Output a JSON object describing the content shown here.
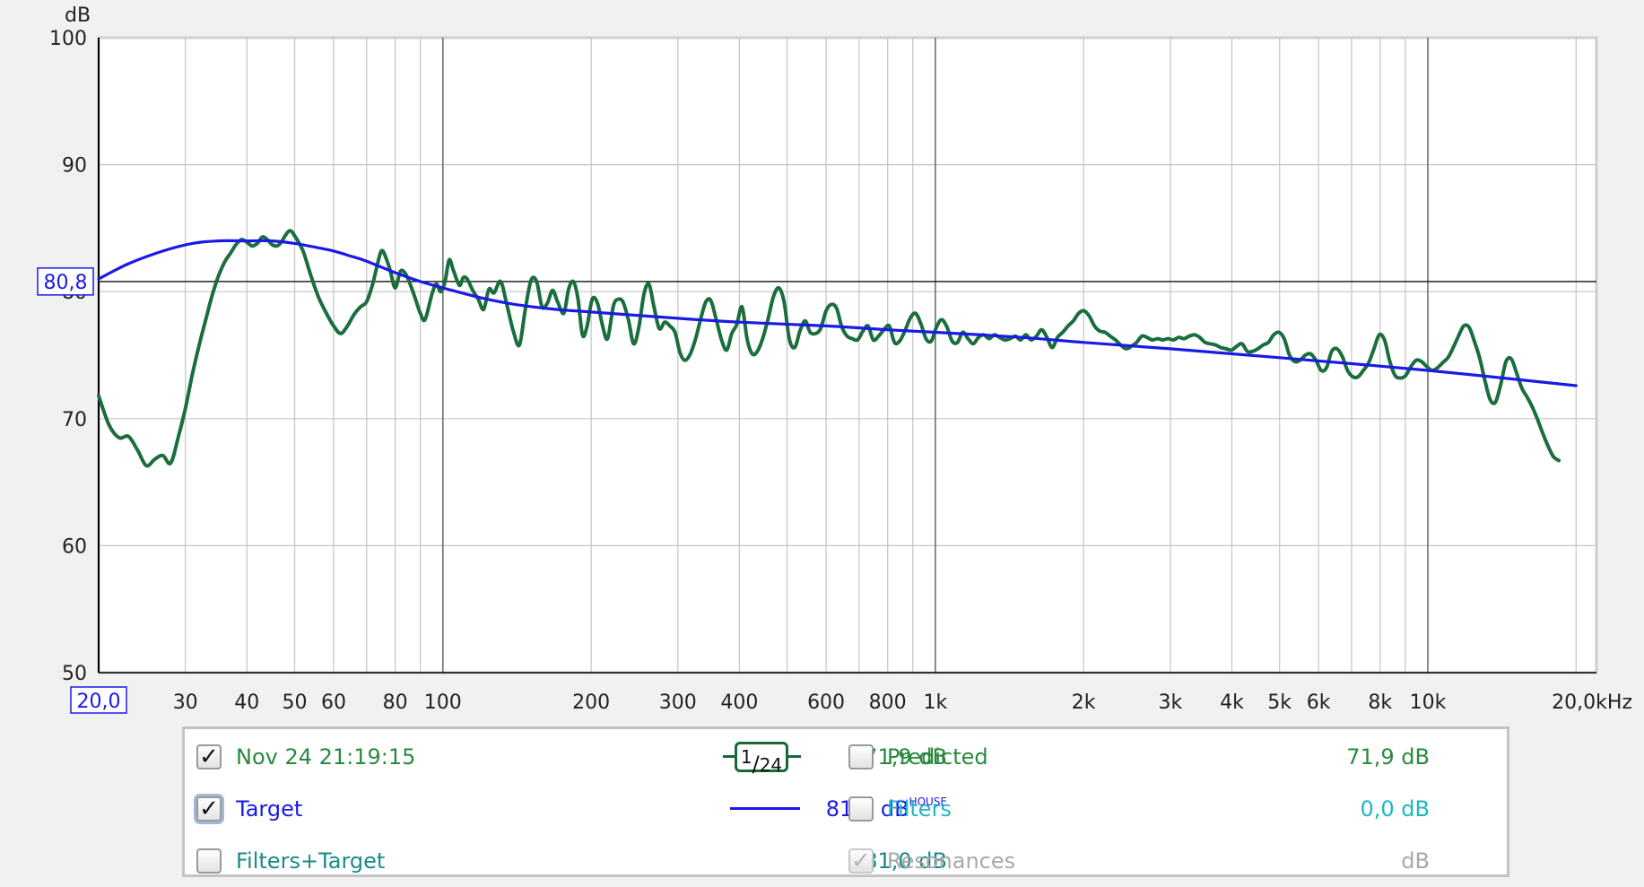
{
  "chart_data": {
    "type": "line",
    "ylabel": "dB",
    "xlabel": "",
    "xscale": "log",
    "xlim": [
      20,
      22000
    ],
    "ylim": [
      50,
      100
    ],
    "grid": true,
    "y_ticks": [
      "100",
      "90",
      "80",
      "70",
      "60",
      "50"
    ],
    "x_ticks": [
      "30",
      "40",
      "50",
      "60",
      "80",
      "100",
      "200",
      "300",
      "400",
      "600",
      "800",
      "1k",
      "2k",
      "3k",
      "4k",
      "5k",
      "6k",
      "8k",
      "10k"
    ],
    "x_start_label": "20,0",
    "x_end_label": "20,0kHz",
    "reference_level_label": "80,8",
    "reference_level": 80.8,
    "series": [
      {
        "name": "Nov 24 21:19:15",
        "color": "#1a6e3c",
        "points": [
          [
            20,
            71.8
          ],
          [
            21,
            69.5
          ],
          [
            22,
            68.5
          ],
          [
            23,
            68.6
          ],
          [
            24,
            67.5
          ],
          [
            25,
            66.3
          ],
          [
            26,
            66.8
          ],
          [
            27,
            67.1
          ],
          [
            28,
            66.5
          ],
          [
            29,
            68.5
          ],
          [
            30,
            70.8
          ],
          [
            31,
            73.5
          ],
          [
            32,
            75.8
          ],
          [
            33,
            77.8
          ],
          [
            34,
            79.7
          ],
          [
            35,
            81.2
          ],
          [
            36,
            82.3
          ],
          [
            37,
            83.0
          ],
          [
            38,
            83.7
          ],
          [
            39,
            84.1
          ],
          [
            40,
            83.9
          ],
          [
            41,
            83.6
          ],
          [
            42,
            83.8
          ],
          [
            43,
            84.3
          ],
          [
            44,
            84.1
          ],
          [
            45,
            83.7
          ],
          [
            46,
            83.6
          ],
          [
            47,
            83.9
          ],
          [
            48,
            84.5
          ],
          [
            49,
            84.8
          ],
          [
            50,
            84.4
          ],
          [
            52,
            83.2
          ],
          [
            54,
            81.2
          ],
          [
            56,
            79.5
          ],
          [
            58,
            78.3
          ],
          [
            60,
            77.3
          ],
          [
            62,
            76.7
          ],
          [
            64,
            77.3
          ],
          [
            66,
            78.2
          ],
          [
            68,
            78.8
          ],
          [
            70,
            79.2
          ],
          [
            72,
            80.6
          ],
          [
            74,
            82.5
          ],
          [
            75,
            83.2
          ],
          [
            76,
            83.0
          ],
          [
            78,
            81.8
          ],
          [
            80,
            80.3
          ],
          [
            82,
            81.6
          ],
          [
            84,
            81.4
          ],
          [
            86,
            80.5
          ],
          [
            88,
            79.4
          ],
          [
            90,
            78.3
          ],
          [
            92,
            77.8
          ],
          [
            95,
            79.8
          ],
          [
            97,
            80.6
          ],
          [
            99,
            80.0
          ],
          [
            101,
            80.8
          ],
          [
            103,
            82.5
          ],
          [
            105,
            81.7
          ],
          [
            108,
            80.5
          ],
          [
            110,
            81.1
          ],
          [
            112,
            81.0
          ],
          [
            115,
            80.1
          ],
          [
            118,
            79.4
          ],
          [
            121,
            78.6
          ],
          [
            124,
            80.2
          ],
          [
            127,
            79.9
          ],
          [
            131,
            80.8
          ],
          [
            135,
            78.9
          ],
          [
            139,
            76.9
          ],
          [
            143,
            75.8
          ],
          [
            147,
            78.6
          ],
          [
            151,
            80.9
          ],
          [
            155,
            80.8
          ],
          [
            159,
            78.8
          ],
          [
            163,
            79.1
          ],
          [
            167,
            80.1
          ],
          [
            171,
            79.2
          ],
          [
            176,
            78.3
          ],
          [
            180,
            80.2
          ],
          [
            184,
            80.8
          ],
          [
            188,
            79.5
          ],
          [
            192,
            76.6
          ],
          [
            196,
            77.2
          ],
          [
            201,
            79.4
          ],
          [
            206,
            79.1
          ],
          [
            211,
            77.3
          ],
          [
            216,
            76.3
          ],
          [
            222,
            78.9
          ],
          [
            227,
            79.4
          ],
          [
            232,
            79.2
          ],
          [
            238,
            77.8
          ],
          [
            244,
            75.9
          ],
          [
            250,
            77.2
          ],
          [
            256,
            79.8
          ],
          [
            262,
            80.6
          ],
          [
            268,
            78.9
          ],
          [
            275,
            77.1
          ],
          [
            282,
            77.6
          ],
          [
            289,
            77.3
          ],
          [
            296,
            76.8
          ],
          [
            303,
            75.2
          ],
          [
            310,
            74.6
          ],
          [
            318,
            75.1
          ],
          [
            326,
            76.3
          ],
          [
            334,
            77.9
          ],
          [
            342,
            79.2
          ],
          [
            350,
            79.3
          ],
          [
            359,
            77.8
          ],
          [
            368,
            76.2
          ],
          [
            377,
            75.4
          ],
          [
            386,
            76.7
          ],
          [
            395,
            77.4
          ],
          [
            405,
            78.8
          ],
          [
            415,
            76.2
          ],
          [
            425,
            75.1
          ],
          [
            435,
            75.3
          ],
          [
            446,
            76.3
          ],
          [
            457,
            77.8
          ],
          [
            469,
            79.6
          ],
          [
            481,
            80.3
          ],
          [
            493,
            79.2
          ],
          [
            505,
            76.3
          ],
          [
            518,
            75.6
          ],
          [
            531,
            76.9
          ],
          [
            544,
            77.7
          ],
          [
            557,
            76.8
          ],
          [
            571,
            76.7
          ],
          [
            585,
            77.1
          ],
          [
            600,
            78.5
          ],
          [
            615,
            79.0
          ],
          [
            630,
            78.7
          ],
          [
            646,
            77.2
          ],
          [
            662,
            76.5
          ],
          [
            678,
            76.3
          ],
          [
            695,
            76.2
          ],
          [
            713,
            76.9
          ],
          [
            730,
            77.3
          ],
          [
            748,
            76.2
          ],
          [
            767,
            76.5
          ],
          [
            786,
            77.0
          ],
          [
            806,
            77.3
          ],
          [
            826,
            76.0
          ],
          [
            846,
            76.1
          ],
          [
            867,
            76.9
          ],
          [
            889,
            77.9
          ],
          [
            911,
            78.3
          ],
          [
            934,
            77.5
          ],
          [
            957,
            76.3
          ],
          [
            981,
            76.1
          ],
          [
            1005,
            77.2
          ],
          [
            1030,
            77.8
          ],
          [
            1056,
            77.2
          ],
          [
            1082,
            76.1
          ],
          [
            1109,
            76.0
          ],
          [
            1137,
            76.8
          ],
          [
            1165,
            76.3
          ],
          [
            1194,
            75.9
          ],
          [
            1224,
            76.4
          ],
          [
            1254,
            76.6
          ],
          [
            1286,
            76.3
          ],
          [
            1318,
            76.6
          ],
          [
            1350,
            76.4
          ],
          [
            1384,
            76.2
          ],
          [
            1419,
            76.3
          ],
          [
            1454,
            76.5
          ],
          [
            1490,
            76.2
          ],
          [
            1527,
            76.6
          ],
          [
            1565,
            76.2
          ],
          [
            1604,
            76.5
          ],
          [
            1644,
            77.0
          ],
          [
            1685,
            76.4
          ],
          [
            1727,
            75.6
          ],
          [
            1770,
            76.4
          ],
          [
            1814,
            76.8
          ],
          [
            1860,
            77.3
          ],
          [
            1906,
            77.7
          ],
          [
            1954,
            78.3
          ],
          [
            2002,
            78.5
          ],
          [
            2052,
            78.1
          ],
          [
            2104,
            77.3
          ],
          [
            2156,
            76.9
          ],
          [
            2210,
            76.8
          ],
          [
            2265,
            76.5
          ],
          [
            2321,
            76.2
          ],
          [
            2379,
            75.8
          ],
          [
            2439,
            75.5
          ],
          [
            2500,
            75.7
          ],
          [
            2562,
            76.0
          ],
          [
            2626,
            76.5
          ],
          [
            2691,
            76.4
          ],
          [
            2758,
            76.2
          ],
          [
            2827,
            76.3
          ],
          [
            2898,
            76.2
          ],
          [
            2970,
            76.3
          ],
          [
            3044,
            76.2
          ],
          [
            3120,
            76.4
          ],
          [
            3198,
            76.3
          ],
          [
            3278,
            76.5
          ],
          [
            3360,
            76.6
          ],
          [
            3443,
            76.4
          ],
          [
            3529,
            76.0
          ],
          [
            3617,
            75.9
          ],
          [
            3708,
            75.8
          ],
          [
            3800,
            75.6
          ],
          [
            3895,
            75.5
          ],
          [
            3992,
            75.4
          ],
          [
            4092,
            75.7
          ],
          [
            4194,
            75.9
          ],
          [
            4299,
            75.3
          ],
          [
            4406,
            75.3
          ],
          [
            4516,
            75.5
          ],
          [
            4629,
            75.8
          ],
          [
            4745,
            76.0
          ],
          [
            4863,
            76.6
          ],
          [
            4985,
            76.8
          ],
          [
            5109,
            76.3
          ],
          [
            5237,
            75.0
          ],
          [
            5368,
            74.5
          ],
          [
            5502,
            74.6
          ],
          [
            5639,
            75.0
          ],
          [
            5780,
            75.1
          ],
          [
            5925,
            74.6
          ],
          [
            6073,
            73.8
          ],
          [
            6225,
            74.0
          ],
          [
            6380,
            75.3
          ],
          [
            6540,
            75.5
          ],
          [
            6703,
            74.9
          ],
          [
            6871,
            73.8
          ],
          [
            7042,
            73.3
          ],
          [
            7218,
            73.3
          ],
          [
            7399,
            73.8
          ],
          [
            7584,
            74.4
          ],
          [
            7773,
            75.5
          ],
          [
            7968,
            76.6
          ],
          [
            8167,
            76.2
          ],
          [
            8371,
            74.5
          ],
          [
            8580,
            73.4
          ],
          [
            8795,
            73.2
          ],
          [
            9015,
            73.4
          ],
          [
            9240,
            74.1
          ],
          [
            9471,
            74.6
          ],
          [
            9708,
            74.5
          ],
          [
            9951,
            74.1
          ],
          [
            10200,
            73.8
          ],
          [
            10455,
            74.0
          ],
          [
            10716,
            74.4
          ],
          [
            10984,
            74.8
          ],
          [
            11259,
            75.6
          ],
          [
            11540,
            76.5
          ],
          [
            11829,
            77.3
          ],
          [
            12125,
            77.2
          ],
          [
            12428,
            76.1
          ],
          [
            12739,
            74.8
          ],
          [
            13057,
            73.0
          ],
          [
            13384,
            71.5
          ],
          [
            13718,
            71.3
          ],
          [
            14061,
            72.7
          ],
          [
            14413,
            74.5
          ],
          [
            14773,
            74.7
          ],
          [
            15142,
            73.6
          ],
          [
            15521,
            72.4
          ],
          [
            15909,
            71.7
          ],
          [
            16307,
            70.9
          ],
          [
            16715,
            69.9
          ],
          [
            17132,
            68.8
          ],
          [
            17561,
            67.8
          ],
          [
            18000,
            67.0
          ],
          [
            18450,
            66.7
          ]
        ]
      },
      {
        "name": "Target",
        "color": "#1a1ae8",
        "points": [
          [
            20,
            81.0
          ],
          [
            23,
            82.2
          ],
          [
            27,
            83.2
          ],
          [
            31,
            83.8
          ],
          [
            35,
            84.0
          ],
          [
            40,
            84.0
          ],
          [
            45,
            84.0
          ],
          [
            50,
            83.8
          ],
          [
            55,
            83.5
          ],
          [
            60,
            83.2
          ],
          [
            65,
            82.8
          ],
          [
            70,
            82.4
          ],
          [
            80,
            81.5
          ],
          [
            90,
            80.8
          ],
          [
            100,
            80.3
          ],
          [
            120,
            79.5
          ],
          [
            140,
            79.0
          ],
          [
            170,
            78.6
          ],
          [
            200,
            78.4
          ],
          [
            300,
            77.9
          ],
          [
            400,
            77.6
          ],
          [
            600,
            77.3
          ],
          [
            800,
            77.0
          ],
          [
            1000,
            76.8
          ],
          [
            1500,
            76.4
          ],
          [
            2000,
            76.0
          ],
          [
            3000,
            75.5
          ],
          [
            5000,
            74.8
          ],
          [
            10000,
            73.8
          ],
          [
            20000,
            72.6
          ]
        ]
      }
    ]
  },
  "legend": {
    "row1": {
      "label": "Nov 24 21:19:15",
      "checked": true,
      "smoothing_num": "1",
      "smoothing_den": "24",
      "level": "71,9 dB",
      "right_label": "Predicted",
      "right_checked": false,
      "right_level": "71,9 dB"
    },
    "row2": {
      "label": "Target",
      "checked": true,
      "level": "81,0 dB",
      "level_sup": "HOUSE",
      "right_label": "Filters",
      "right_checked": false,
      "right_level": "0,0 dB"
    },
    "row3": {
      "label": "Filters+Target",
      "checked": false,
      "level": "81,0 dB",
      "right_label": "Resonances",
      "right_checked": true,
      "right_level": "dB"
    },
    "checkmark": "✓"
  }
}
